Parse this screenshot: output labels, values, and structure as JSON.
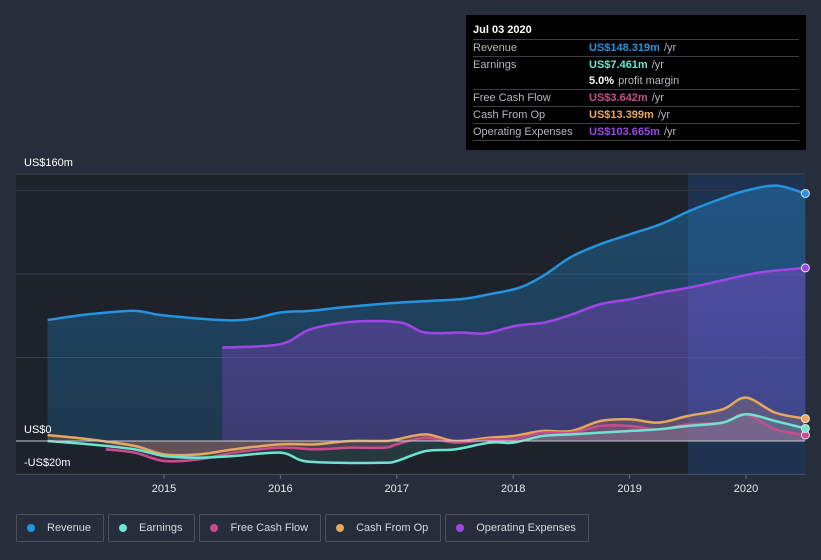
{
  "tooltip": {
    "date": "Jul 03 2020",
    "rows": [
      {
        "label": "Revenue",
        "value": "US$148.319m",
        "unit": "/yr",
        "color": "#2394df"
      },
      {
        "label": "Earnings",
        "value": "US$7.461m",
        "unit": "/yr",
        "color": "#6ee3cf"
      },
      {
        "label": "",
        "value": "5.0%",
        "unit": "profit margin",
        "color": "#ffffff"
      },
      {
        "label": "Free Cash Flow",
        "value": "US$3.642m",
        "unit": "/yr",
        "color": "#c94d8d"
      },
      {
        "label": "Cash From Op",
        "value": "US$13.399m",
        "unit": "/yr",
        "color": "#e8a85b"
      },
      {
        "label": "Operating Expenses",
        "value": "US$103.665m",
        "unit": "/yr",
        "color": "#a146e6"
      }
    ]
  },
  "legend": [
    {
      "label": "Revenue",
      "color": "#2394df"
    },
    {
      "label": "Earnings",
      "color": "#6ee3cf"
    },
    {
      "label": "Free Cash Flow",
      "color": "#c94d8d"
    },
    {
      "label": "Cash From Op",
      "color": "#e8a85b"
    },
    {
      "label": "Operating Expenses",
      "color": "#a146e6"
    }
  ],
  "chart_data": {
    "type": "area",
    "title": "",
    "xlabel": "",
    "ylabel": "",
    "y_axis_labels": {
      "top": "US$160m",
      "zero": "US$0",
      "bottom": "-US$20m"
    },
    "ylim": [
      -20,
      160
    ],
    "xlim": [
      2013.9,
      2020.55
    ],
    "x_ticks": [
      "2015",
      "2016",
      "2017",
      "2018",
      "2019",
      "2020"
    ],
    "grid": true,
    "highlight_region_start": 2019.5,
    "series": [
      {
        "name": "Revenue",
        "color": "#2394df",
        "x": [
          2014.0,
          2014.36,
          2014.75,
          2014.97,
          2015.48,
          2015.74,
          2016.0,
          2016.26,
          2016.52,
          2017.03,
          2017.55,
          2017.8,
          2018.06,
          2018.27,
          2018.49,
          2018.75,
          2019.01,
          2019.27,
          2019.52,
          2019.78,
          2020.0,
          2020.26,
          2020.51
        ],
        "values": [
          72.5,
          76,
          78,
          75.5,
          72.5,
          73,
          77,
          78,
          80,
          83,
          85,
          88,
          92,
          99.5,
          110,
          118,
          124,
          130,
          138,
          145,
          150,
          153,
          148.3
        ]
      },
      {
        "name": "Operating Expenses",
        "color": "#a146e6",
        "x": [
          2015.5,
          2016.0,
          2016.26,
          2016.64,
          2017.03,
          2017.24,
          2017.55,
          2017.76,
          2018.02,
          2018.27,
          2018.49,
          2018.75,
          2019.01,
          2019.27,
          2019.52,
          2019.78,
          2020.12,
          2020.51
        ],
        "values": [
          56,
          58,
          67,
          71.5,
          71,
          65,
          65,
          64.5,
          69,
          71,
          75.5,
          82,
          85,
          89,
          92,
          96,
          101,
          103.7
        ]
      },
      {
        "name": "Cash From Op",
        "color": "#e8a85b",
        "x": [
          2014.0,
          2014.36,
          2014.75,
          2015.0,
          2015.3,
          2015.6,
          2016.0,
          2016.3,
          2016.6,
          2016.9,
          2017.0,
          2017.25,
          2017.5,
          2017.8,
          2018.0,
          2018.25,
          2018.5,
          2018.75,
          2019.0,
          2019.25,
          2019.5,
          2019.8,
          2020.0,
          2020.25,
          2020.51
        ],
        "values": [
          3.5,
          1,
          -3,
          -8,
          -8,
          -5,
          -2,
          -2,
          0,
          0,
          1,
          4,
          0,
          2,
          3,
          6,
          6,
          12,
          13,
          11,
          15,
          19,
          26,
          17,
          13.4
        ]
      },
      {
        "name": "Free Cash Flow",
        "color": "#c94d8d",
        "x": [
          2014.5,
          2014.75,
          2015.0,
          2015.3,
          2015.6,
          2016.0,
          2016.3,
          2016.6,
          2016.9,
          2017.0,
          2017.25,
          2017.5,
          2017.8,
          2018.0,
          2018.25,
          2018.5,
          2018.75,
          2019.0,
          2019.25,
          2019.5,
          2019.8,
          2020.0,
          2020.25,
          2020.51
        ],
        "values": [
          -5,
          -7,
          -12,
          -11,
          -7,
          -4,
          -5,
          -4,
          -4,
          -2,
          2,
          -1,
          1,
          1,
          5,
          5,
          9,
          9,
          7,
          10,
          11,
          16,
          7,
          3.6
        ]
      },
      {
        "name": "Earnings",
        "color": "#6ee3cf",
        "x": [
          2014.0,
          2014.36,
          2014.75,
          2015.0,
          2015.3,
          2015.6,
          2016.0,
          2016.2,
          2016.5,
          2016.9,
          2017.0,
          2017.25,
          2017.5,
          2017.8,
          2018.0,
          2018.25,
          2018.5,
          2018.75,
          2019.0,
          2019.25,
          2019.5,
          2019.8,
          2020.0,
          2020.25,
          2020.51
        ],
        "values": [
          0,
          -2,
          -5,
          -9,
          -10,
          -9,
          -7,
          -12,
          -13,
          -13,
          -12,
          -6,
          -5,
          -1,
          -1,
          3,
          4,
          5,
          6,
          7,
          9,
          11,
          16,
          12,
          7.5
        ]
      }
    ]
  }
}
